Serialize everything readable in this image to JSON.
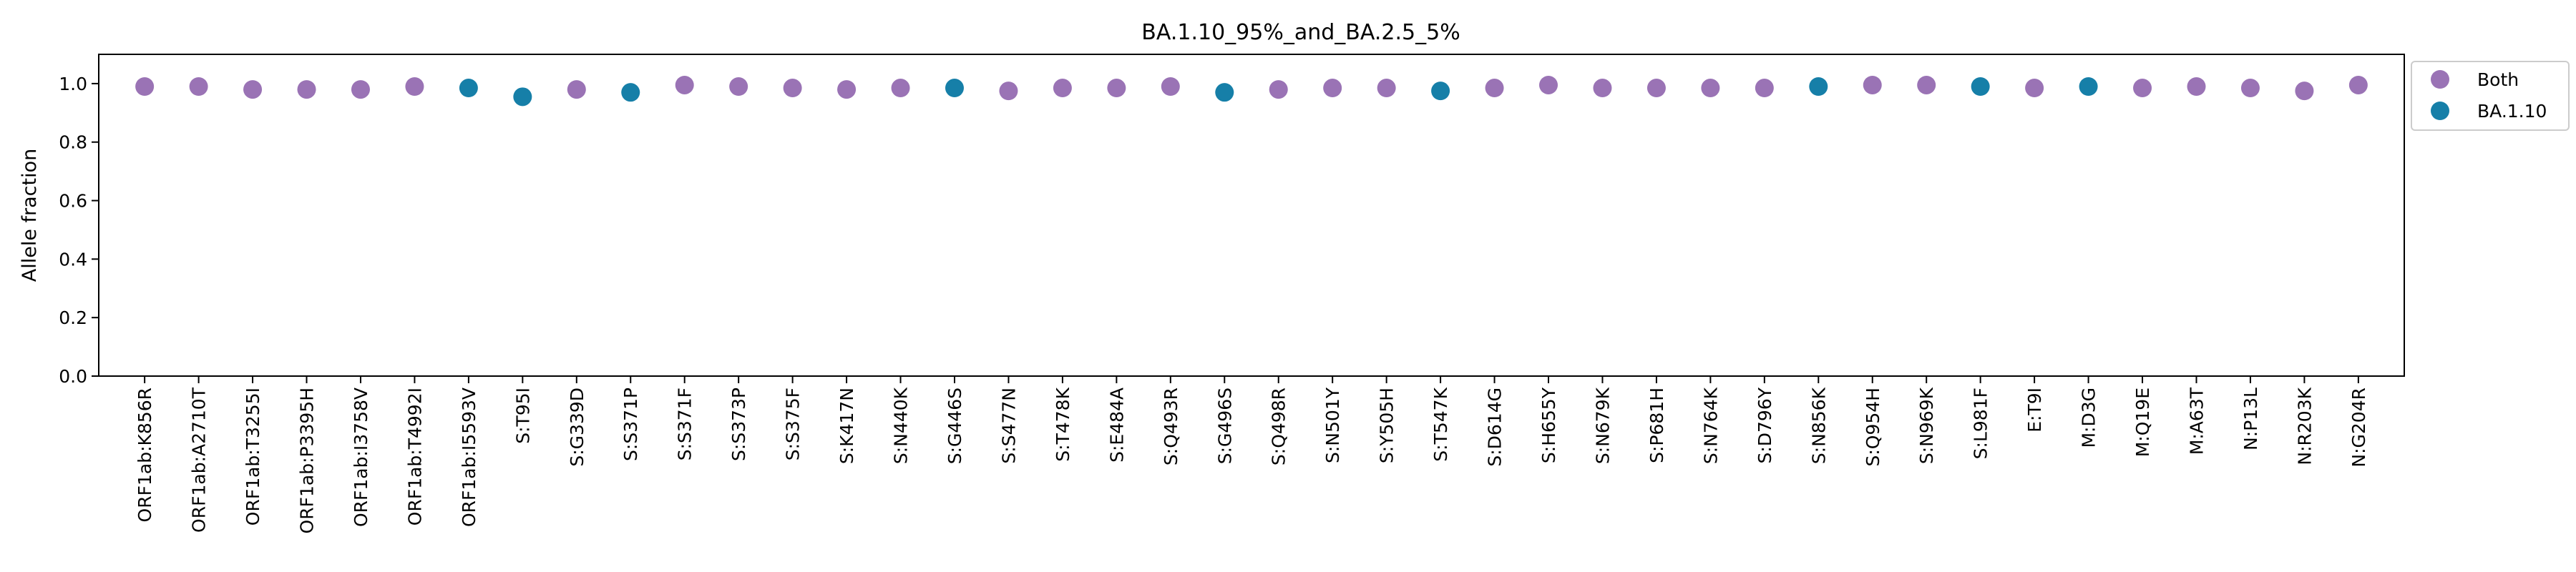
{
  "chart_data": {
    "type": "scatter",
    "title": "BA.1.10_95%_and_BA.2.5_5%",
    "xlabel": "",
    "ylabel": "Allele fraction",
    "ylim": [
      0.0,
      1.1
    ],
    "yticks": [
      "0.0",
      "0.2",
      "0.4",
      "0.6",
      "0.8",
      "1.0"
    ],
    "grid": false,
    "legend_position": "outside-top-right",
    "categories": [
      "ORF1ab:K856R",
      "ORF1ab:A2710T",
      "ORF1ab:T3255I",
      "ORF1ab:P3395H",
      "ORF1ab:I3758V",
      "ORF1ab:T4992I",
      "ORF1ab:I5593V",
      "S:T95I",
      "S:G339D",
      "S:S371P",
      "S:S371F",
      "S:S373P",
      "S:S375F",
      "S:K417N",
      "S:N440K",
      "S:G446S",
      "S:S477N",
      "S:T478K",
      "S:E484A",
      "S:Q493R",
      "S:G496S",
      "S:Q498R",
      "S:N501Y",
      "S:Y505H",
      "S:T547K",
      "S:D614G",
      "S:H655Y",
      "S:N679K",
      "S:P681H",
      "S:N764K",
      "S:D796Y",
      "S:N856K",
      "S:Q954H",
      "S:N969K",
      "S:L981F",
      "E:T9I",
      "M:D3G",
      "M:Q19E",
      "M:A63T",
      "N:P13L",
      "N:R203K",
      "N:G204R"
    ],
    "series": [
      {
        "name": "Both",
        "color": "#9a73b5",
        "points": [
          {
            "x": "ORF1ab:K856R",
            "y": 0.99
          },
          {
            "x": "ORF1ab:A2710T",
            "y": 0.99
          },
          {
            "x": "ORF1ab:T3255I",
            "y": 0.98
          },
          {
            "x": "ORF1ab:P3395H",
            "y": 0.98
          },
          {
            "x": "ORF1ab:I3758V",
            "y": 0.98
          },
          {
            "x": "ORF1ab:T4992I",
            "y": 0.99
          },
          {
            "x": "S:G339D",
            "y": 0.98
          },
          {
            "x": "S:S371F",
            "y": 0.995
          },
          {
            "x": "S:S373P",
            "y": 0.99
          },
          {
            "x": "S:S375F",
            "y": 0.985
          },
          {
            "x": "S:K417N",
            "y": 0.98
          },
          {
            "x": "S:N440K",
            "y": 0.985
          },
          {
            "x": "S:S477N",
            "y": 0.975
          },
          {
            "x": "S:T478K",
            "y": 0.985
          },
          {
            "x": "S:E484A",
            "y": 0.985
          },
          {
            "x": "S:Q493R",
            "y": 0.99
          },
          {
            "x": "S:Q498R",
            "y": 0.98
          },
          {
            "x": "S:N501Y",
            "y": 0.985
          },
          {
            "x": "S:Y505H",
            "y": 0.985
          },
          {
            "x": "S:D614G",
            "y": 0.985
          },
          {
            "x": "S:H655Y",
            "y": 0.995
          },
          {
            "x": "S:N679K",
            "y": 0.985
          },
          {
            "x": "S:P681H",
            "y": 0.985
          },
          {
            "x": "S:N764K",
            "y": 0.985
          },
          {
            "x": "S:D796Y",
            "y": 0.985
          },
          {
            "x": "S:Q954H",
            "y": 0.995
          },
          {
            "x": "S:N969K",
            "y": 0.995
          },
          {
            "x": "E:T9I",
            "y": 0.985
          },
          {
            "x": "M:Q19E",
            "y": 0.985
          },
          {
            "x": "M:A63T",
            "y": 0.99
          },
          {
            "x": "N:P13L",
            "y": 0.985
          },
          {
            "x": "N:R203K",
            "y": 0.975
          },
          {
            "x": "N:G204R",
            "y": 0.995
          }
        ]
      },
      {
        "name": "BA.1.10",
        "color": "#167fa8",
        "points": [
          {
            "x": "ORF1ab:I5593V",
            "y": 0.985
          },
          {
            "x": "S:T95I",
            "y": 0.955
          },
          {
            "x": "S:S371P",
            "y": 0.97
          },
          {
            "x": "S:G446S",
            "y": 0.985
          },
          {
            "x": "S:G496S",
            "y": 0.97
          },
          {
            "x": "S:T547K",
            "y": 0.975
          },
          {
            "x": "S:N856K",
            "y": 0.99
          },
          {
            "x": "S:L981F",
            "y": 0.99
          },
          {
            "x": "M:D3G",
            "y": 0.99
          }
        ]
      }
    ]
  }
}
